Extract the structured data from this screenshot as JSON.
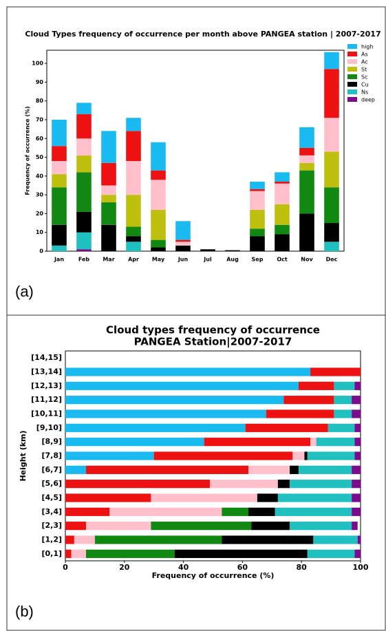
{
  "chart_data": [
    {
      "type": "bar",
      "stacked": true,
      "orientation": "vertical",
      "panel_label": "(a)",
      "title": "Cloud Types frequency of occurrence per month above PANGEA station | 2007-2017",
      "y_label": "Frequency of occurrence (%)",
      "categories": [
        "Jan",
        "Feb",
        "Mar",
        "Apr",
        "May",
        "Jun",
        "Jul",
        "Aug",
        "Sep",
        "Oct",
        "Nov",
        "Dec"
      ],
      "series": [
        {
          "name": "deep",
          "color": "#7b0a8c",
          "values": [
            0,
            1,
            0,
            0,
            0,
            0,
            0,
            0,
            0,
            0,
            0,
            0
          ]
        },
        {
          "name": "Ns",
          "color": "#20c0c0",
          "values": [
            3,
            9,
            0,
            5,
            0,
            0,
            0,
            0,
            0,
            0,
            0,
            5
          ]
        },
        {
          "name": "Cu",
          "color": "#000000",
          "values": [
            11,
            11,
            14,
            3,
            2,
            3,
            1,
            0.5,
            8,
            9,
            20,
            10
          ]
        },
        {
          "name": "Sc",
          "color": "#118811",
          "values": [
            20,
            21,
            12,
            5,
            4,
            0,
            0,
            0,
            4,
            5,
            23,
            19
          ]
        },
        {
          "name": "St",
          "color": "#bfbf10",
          "values": [
            7,
            9,
            4,
            17,
            16,
            0,
            0,
            0,
            10,
            11,
            4,
            19
          ]
        },
        {
          "name": "Ac",
          "color": "#ffc0cb",
          "values": [
            7,
            9,
            5,
            18,
            16,
            2,
            0,
            0,
            10,
            11,
            4,
            18
          ]
        },
        {
          "name": "As",
          "color": "#ee1111",
          "values": [
            8,
            13,
            12,
            16,
            5,
            1,
            0,
            0,
            1,
            1,
            4,
            26
          ]
        },
        {
          "name": "high",
          "color": "#19baf0",
          "values": [
            14,
            6,
            17,
            7,
            15,
            10,
            0,
            0,
            4,
            5,
            11,
            9
          ]
        }
      ],
      "ylim": [
        0,
        107
      ],
      "yticks": [
        0,
        10,
        20,
        30,
        40,
        50,
        60,
        70,
        80,
        90,
        100
      ],
      "legend": "outside-right"
    },
    {
      "type": "bar",
      "stacked": true,
      "orientation": "horizontal",
      "panel_label": "(b)",
      "title": "Cloud types frequency of occurrence",
      "subtitle": "PANGEA Station|2007-2017",
      "x_label": "Frequency of occurrence (%)",
      "y_label": "Height (km)",
      "categories": [
        "[0,1]",
        "[1,2]",
        "[2,3]",
        "[3,4]",
        "[4,5]",
        "[5,6]",
        "[6,7]",
        "[7,8]",
        "[8,9]",
        "[9,10]",
        "[10,11]",
        "[11,12]",
        "[12,13]",
        "[13,14]",
        "[14,15]"
      ],
      "series": [
        {
          "color": "#19baf0",
          "values": [
            0,
            0,
            0,
            0,
            0,
            0,
            7,
            30,
            47,
            61,
            68,
            74,
            79,
            83,
            0
          ]
        },
        {
          "color": "#ee1111",
          "values": [
            2,
            3,
            7,
            15,
            29,
            49,
            55,
            47,
            36,
            28,
            23,
            17,
            12,
            17,
            0
          ]
        },
        {
          "color": "#ffc0cb",
          "values": [
            5,
            7,
            22,
            38,
            36,
            23,
            14,
            4,
            2,
            0,
            0,
            0,
            0,
            0,
            0
          ]
        },
        {
          "color": "#118811",
          "values": [
            30,
            43,
            34,
            9,
            0,
            0,
            0,
            0,
            0,
            0,
            0,
            0,
            0,
            0,
            0
          ]
        },
        {
          "color": "#000000",
          "values": [
            45,
            31,
            13,
            9,
            7,
            4,
            3,
            1,
            0,
            0,
            0,
            0,
            0,
            0,
            0
          ]
        },
        {
          "color": "#20c0c0",
          "values": [
            16,
            15,
            21,
            26,
            25,
            21,
            18,
            16,
            13,
            9,
            6,
            6,
            7,
            0,
            0
          ]
        },
        {
          "color": "#7b0a8c",
          "values": [
            2,
            1,
            2,
            3,
            3,
            3,
            3,
            2,
            2,
            2,
            3,
            3,
            2,
            0,
            0
          ]
        }
      ],
      "xlim": [
        0,
        100
      ],
      "xticks": [
        0,
        20,
        40,
        60,
        80,
        100
      ]
    }
  ]
}
